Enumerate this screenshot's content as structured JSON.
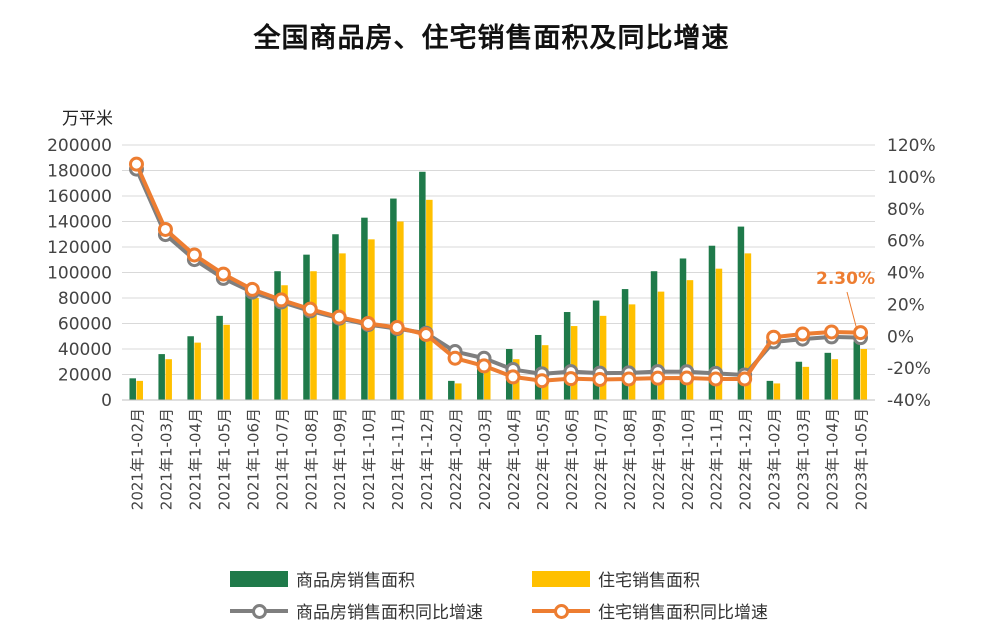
{
  "chart_data": {
    "type": "bar",
    "title": "全国商品房、住宅销售面积及同比增速",
    "y_unit": "万平米",
    "ylim_left": [
      0,
      200000
    ],
    "ylim_right": [
      -40,
      120
    ],
    "left_ticks": [
      "200000",
      "180000",
      "160000",
      "140000",
      "120000",
      "100000",
      "80000",
      "60000",
      "40000",
      "20000",
      "0"
    ],
    "right_ticks": [
      "120%",
      "100%",
      "80%",
      "60%",
      "40%",
      "20%",
      "0%",
      "-20%",
      "-40%"
    ],
    "categories": [
      "2021年1-02月",
      "2021年1-03月",
      "2021年1-04月",
      "2021年1-05月",
      "2021年1-06月",
      "2021年1-07月",
      "2021年1-08月",
      "2021年1-09月",
      "2021年1-10月",
      "2021年1-11月",
      "2021年1-12月",
      "2022年1-02月",
      "2022年1-03月",
      "2022年1-04月",
      "2022年1-05月",
      "2022年1-06月",
      "2022年1-07月",
      "2022年1-08月",
      "2022年1-09月",
      "2022年1-10月",
      "2022年1-11月",
      "2022年1-12月",
      "2023年1-02月",
      "2023年1-03月",
      "2023年1-04月",
      "2023年1-05月"
    ],
    "series": [
      {
        "name": "商品房销售面积",
        "kind": "bar",
        "axis": "left",
        "color": "#1f7a4a",
        "values": [
          17000,
          36000,
          50000,
          66000,
          89000,
          101000,
          114000,
          130000,
          143000,
          158000,
          179000,
          15000,
          31000,
          40000,
          51000,
          69000,
          78000,
          87000,
          101000,
          111000,
          121000,
          136000,
          15000,
          30000,
          37000,
          46000
        ]
      },
      {
        "name": "住宅销售面积",
        "kind": "bar",
        "axis": "left",
        "color": "#ffc000",
        "values": [
          15000,
          32000,
          45000,
          59000,
          80000,
          90000,
          101000,
          115000,
          126000,
          140000,
          157000,
          13000,
          26000,
          32000,
          43000,
          58000,
          66000,
          75000,
          85000,
          94000,
          103000,
          115000,
          13000,
          26000,
          32000,
          40000
        ]
      },
      {
        "name": "商品房销售面积同比增速",
        "kind": "line",
        "axis": "right",
        "color": "#7f7f7f",
        "values": [
          104.9,
          63.8,
          48.1,
          36.3,
          27.7,
          21.5,
          15.9,
          11.3,
          7.3,
          4.8,
          1.9,
          -9.6,
          -13.8,
          -20.9,
          -23.6,
          -22.2,
          -23.1,
          -23.0,
          -22.2,
          -22.3,
          -23.3,
          -24.3,
          -3.6,
          -1.8,
          -0.4,
          -0.9
        ]
      },
      {
        "name": "住宅销售面积同比增速",
        "kind": "line",
        "axis": "right",
        "color": "#ed7d31",
        "values": [
          108.0,
          67.0,
          51.0,
          39.0,
          29.4,
          22.8,
          17.0,
          12.0,
          8.0,
          5.5,
          1.1,
          -13.8,
          -18.6,
          -25.5,
          -27.9,
          -26.6,
          -27.1,
          -26.8,
          -26.3,
          -26.2,
          -26.8,
          -26.8,
          -0.6,
          1.4,
          2.7,
          2.3
        ]
      }
    ],
    "annotation": "2.30%",
    "legend_position": "bottom",
    "grid": true
  }
}
